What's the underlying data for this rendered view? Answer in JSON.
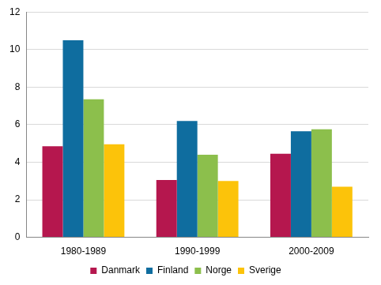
{
  "chart_data": {
    "type": "bar",
    "categories": [
      "1980-1989",
      "1990-1999",
      "2000-2009"
    ],
    "series": [
      {
        "name": "Danmark",
        "color": "#b5174e",
        "values": [
          4.85,
          3.05,
          4.45
        ]
      },
      {
        "name": "Finland",
        "color": "#0f6d9f",
        "values": [
          10.5,
          6.2,
          5.65
        ]
      },
      {
        "name": "Norge",
        "color": "#8cbf4c",
        "values": [
          7.35,
          4.4,
          5.75
        ]
      },
      {
        "name": "Sverige",
        "color": "#fcc30a",
        "values": [
          4.95,
          3.0,
          2.7
        ]
      }
    ],
    "ylim": [
      0,
      12
    ],
    "yticks": [
      0,
      2,
      4,
      6,
      8,
      10,
      12
    ],
    "grid": true,
    "legend": "bottom"
  }
}
